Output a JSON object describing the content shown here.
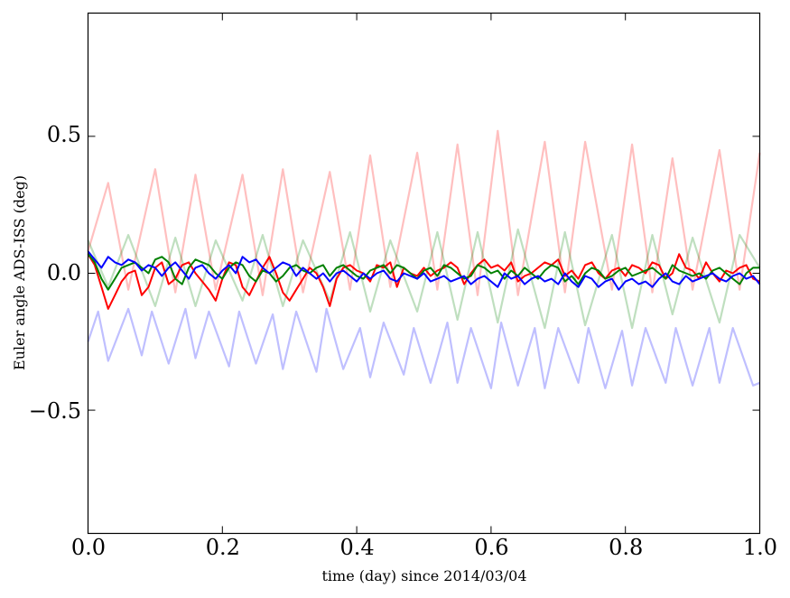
{
  "chart_data": {
    "type": "line",
    "title": "",
    "xlabel": "time (day) since 2014/03/04",
    "ylabel": "Euler angle ADS-ISS (deg)",
    "xlim": [
      0.0,
      1.0
    ],
    "ylim": [
      -0.95,
      0.95
    ],
    "xticks": [
      0.0,
      0.2,
      0.4,
      0.6,
      0.8,
      1.0
    ],
    "xtick_labels": [
      "0.0",
      "0.2",
      "0.4",
      "0.6",
      "0.8",
      "1.0"
    ],
    "yticks": [
      0.5,
      0.0,
      -0.5
    ],
    "ytick_labels": [
      "0.5",
      "0.0",
      "−0.5"
    ],
    "grid": false,
    "series": [
      {
        "color": "#ff0000",
        "opacity": 0.25,
        "style": "periodic-spikes",
        "x": [
          0.0,
          0.03,
          0.06,
          0.1,
          0.13,
          0.16,
          0.19,
          0.23,
          0.26,
          0.29,
          0.32,
          0.36,
          0.39,
          0.42,
          0.45,
          0.49,
          0.52,
          0.55,
          0.58,
          0.61,
          0.64,
          0.68,
          0.71,
          0.74,
          0.78,
          0.81,
          0.84,
          0.87,
          0.9,
          0.94,
          0.97,
          1.0
        ],
        "y": [
          0.08,
          0.33,
          -0.06,
          0.38,
          -0.07,
          0.36,
          -0.06,
          0.36,
          -0.08,
          0.38,
          -0.07,
          0.37,
          -0.06,
          0.43,
          -0.05,
          0.44,
          -0.06,
          0.47,
          -0.08,
          0.52,
          -0.08,
          0.48,
          -0.07,
          0.48,
          -0.06,
          0.47,
          -0.07,
          0.42,
          -0.06,
          0.45,
          -0.06,
          0.44
        ]
      },
      {
        "color": "#008000",
        "opacity": 0.25,
        "style": "periodic-wave",
        "x": [
          0.0,
          0.03,
          0.06,
          0.1,
          0.13,
          0.16,
          0.19,
          0.23,
          0.26,
          0.29,
          0.32,
          0.36,
          0.39,
          0.42,
          0.45,
          0.49,
          0.52,
          0.55,
          0.58,
          0.61,
          0.64,
          0.68,
          0.71,
          0.74,
          0.78,
          0.81,
          0.84,
          0.87,
          0.9,
          0.94,
          0.97,
          1.0
        ],
        "y": [
          0.12,
          -0.05,
          0.14,
          -0.12,
          0.13,
          -0.12,
          0.12,
          -0.1,
          0.14,
          -0.12,
          0.12,
          -0.1,
          0.15,
          -0.14,
          0.12,
          -0.14,
          0.15,
          -0.17,
          0.15,
          -0.18,
          0.16,
          -0.2,
          0.15,
          -0.19,
          0.14,
          -0.2,
          0.14,
          -0.15,
          0.13,
          -0.18,
          0.14,
          0.02
        ]
      },
      {
        "color": "#0000ff",
        "opacity": 0.25,
        "style": "periodic-dips",
        "x": [
          0.0,
          0.015,
          0.03,
          0.06,
          0.08,
          0.095,
          0.12,
          0.145,
          0.16,
          0.18,
          0.21,
          0.225,
          0.25,
          0.275,
          0.29,
          0.31,
          0.34,
          0.355,
          0.38,
          0.405,
          0.42,
          0.44,
          0.47,
          0.485,
          0.51,
          0.535,
          0.55,
          0.57,
          0.6,
          0.615,
          0.64,
          0.665,
          0.68,
          0.7,
          0.73,
          0.745,
          0.77,
          0.795,
          0.81,
          0.83,
          0.86,
          0.875,
          0.9,
          0.925,
          0.94,
          0.96,
          0.99,
          1.0
        ],
        "y": [
          -0.25,
          -0.14,
          -0.32,
          -0.13,
          -0.3,
          -0.14,
          -0.33,
          -0.13,
          -0.31,
          -0.14,
          -0.34,
          -0.14,
          -0.33,
          -0.15,
          -0.35,
          -0.14,
          -0.36,
          -0.13,
          -0.35,
          -0.2,
          -0.38,
          -0.18,
          -0.37,
          -0.2,
          -0.4,
          -0.18,
          -0.4,
          -0.2,
          -0.42,
          -0.18,
          -0.41,
          -0.2,
          -0.42,
          -0.2,
          -0.4,
          -0.2,
          -0.42,
          -0.21,
          -0.41,
          -0.2,
          -0.4,
          -0.2,
          -0.41,
          -0.2,
          -0.4,
          -0.2,
          -0.41,
          -0.4
        ]
      },
      {
        "color": "#ff0000",
        "opacity": 1,
        "style": "noisy",
        "x": [
          0.0,
          0.01,
          0.02,
          0.03,
          0.04,
          0.05,
          0.06,
          0.07,
          0.08,
          0.09,
          0.1,
          0.11,
          0.12,
          0.13,
          0.14,
          0.15,
          0.16,
          0.17,
          0.18,
          0.19,
          0.2,
          0.21,
          0.22,
          0.23,
          0.24,
          0.25,
          0.26,
          0.27,
          0.28,
          0.29,
          0.3,
          0.31,
          0.32,
          0.33,
          0.34,
          0.35,
          0.36,
          0.37,
          0.38,
          0.39,
          0.4,
          0.41,
          0.42,
          0.43,
          0.44,
          0.45,
          0.46,
          0.47,
          0.48,
          0.49,
          0.5,
          0.51,
          0.52,
          0.53,
          0.54,
          0.55,
          0.56,
          0.57,
          0.58,
          0.59,
          0.6,
          0.61,
          0.62,
          0.63,
          0.64,
          0.65,
          0.66,
          0.67,
          0.68,
          0.69,
          0.7,
          0.71,
          0.72,
          0.73,
          0.74,
          0.75,
          0.76,
          0.77,
          0.78,
          0.79,
          0.8,
          0.81,
          0.82,
          0.83,
          0.84,
          0.85,
          0.86,
          0.87,
          0.88,
          0.89,
          0.9,
          0.91,
          0.92,
          0.93,
          0.94,
          0.95,
          0.96,
          0.97,
          0.98,
          0.99,
          1.0
        ],
        "y": [
          0.07,
          0.03,
          -0.05,
          -0.13,
          -0.08,
          -0.03,
          0.0,
          0.01,
          -0.08,
          -0.05,
          0.02,
          0.04,
          -0.04,
          -0.02,
          0.03,
          0.04,
          0.0,
          -0.03,
          -0.06,
          -0.1,
          -0.02,
          0.04,
          0.03,
          -0.05,
          -0.08,
          -0.03,
          0.02,
          0.06,
          0.0,
          -0.07,
          -0.1,
          -0.06,
          -0.02,
          0.02,
          0.0,
          -0.05,
          -0.12,
          -0.02,
          0.02,
          0.03,
          0.01,
          0.0,
          -0.03,
          0.03,
          0.02,
          0.04,
          -0.05,
          0.02,
          0.0,
          -0.01,
          0.02,
          -0.01,
          0.01,
          0.02,
          0.04,
          0.02,
          -0.04,
          0.0,
          0.03,
          0.05,
          0.02,
          0.03,
          0.01,
          0.04,
          -0.03,
          -0.01,
          0.0,
          0.02,
          0.04,
          0.03,
          0.05,
          -0.01,
          0.01,
          -0.02,
          0.03,
          0.04,
          0.0,
          -0.02,
          0.01,
          0.02,
          -0.01,
          0.03,
          0.02,
          0.0,
          0.04,
          0.03,
          -0.02,
          0.0,
          0.07,
          0.02,
          0.01,
          -0.02,
          0.04,
          0.0,
          -0.03,
          0.01,
          0.0,
          0.02,
          0.03,
          -0.02,
          -0.03
        ]
      },
      {
        "color": "#008000",
        "opacity": 1,
        "style": "noisy",
        "x": [
          0.0,
          0.01,
          0.02,
          0.03,
          0.04,
          0.05,
          0.06,
          0.07,
          0.08,
          0.09,
          0.1,
          0.11,
          0.12,
          0.13,
          0.14,
          0.15,
          0.16,
          0.17,
          0.18,
          0.19,
          0.2,
          0.21,
          0.22,
          0.23,
          0.24,
          0.25,
          0.26,
          0.27,
          0.28,
          0.29,
          0.3,
          0.31,
          0.32,
          0.33,
          0.34,
          0.35,
          0.36,
          0.37,
          0.38,
          0.39,
          0.4,
          0.41,
          0.42,
          0.43,
          0.44,
          0.45,
          0.46,
          0.47,
          0.48,
          0.49,
          0.5,
          0.51,
          0.52,
          0.53,
          0.54,
          0.55,
          0.56,
          0.57,
          0.58,
          0.59,
          0.6,
          0.61,
          0.62,
          0.63,
          0.64,
          0.65,
          0.66,
          0.67,
          0.68,
          0.69,
          0.7,
          0.71,
          0.72,
          0.73,
          0.74,
          0.75,
          0.76,
          0.77,
          0.78,
          0.79,
          0.8,
          0.81,
          0.82,
          0.83,
          0.84,
          0.85,
          0.86,
          0.87,
          0.88,
          0.89,
          0.9,
          0.91,
          0.92,
          0.93,
          0.94,
          0.95,
          0.96,
          0.97,
          0.98,
          0.99,
          1.0
        ],
        "y": [
          0.07,
          0.04,
          -0.02,
          -0.06,
          -0.02,
          0.02,
          0.03,
          0.04,
          0.02,
          0.0,
          0.05,
          0.06,
          0.04,
          -0.02,
          -0.04,
          0.02,
          0.05,
          0.04,
          0.03,
          0.0,
          -0.02,
          0.02,
          0.04,
          0.03,
          -0.01,
          -0.03,
          0.01,
          0.0,
          -0.03,
          -0.01,
          0.02,
          0.03,
          0.01,
          0.0,
          0.02,
          0.03,
          -0.01,
          0.02,
          0.03,
          0.01,
          -0.01,
          -0.02,
          0.01,
          0.02,
          0.03,
          0.0,
          0.03,
          0.02,
          0.0,
          -0.02,
          0.01,
          0.02,
          -0.01,
          0.03,
          0.02,
          0.0,
          -0.02,
          -0.01,
          0.03,
          0.02,
          0.0,
          0.01,
          -0.02,
          0.01,
          -0.01,
          0.02,
          0.0,
          -0.02,
          0.01,
          0.03,
          0.02,
          -0.03,
          -0.01,
          -0.04,
          0.0,
          0.02,
          0.01,
          -0.02,
          -0.01,
          0.01,
          0.02,
          -0.01,
          0.0,
          0.01,
          0.02,
          0.0,
          -0.02,
          0.03,
          0.01,
          0.0,
          -0.01,
          0.0,
          -0.02,
          0.01,
          0.02,
          0.0,
          -0.02,
          -0.04,
          0.0,
          0.02,
          0.02
        ]
      },
      {
        "color": "#0000ff",
        "opacity": 1,
        "style": "noisy",
        "x": [
          0.0,
          0.01,
          0.02,
          0.03,
          0.04,
          0.05,
          0.06,
          0.07,
          0.08,
          0.09,
          0.1,
          0.11,
          0.12,
          0.13,
          0.14,
          0.15,
          0.16,
          0.17,
          0.18,
          0.19,
          0.2,
          0.21,
          0.22,
          0.23,
          0.24,
          0.25,
          0.26,
          0.27,
          0.28,
          0.29,
          0.3,
          0.31,
          0.32,
          0.33,
          0.34,
          0.35,
          0.36,
          0.37,
          0.38,
          0.39,
          0.4,
          0.41,
          0.42,
          0.43,
          0.44,
          0.45,
          0.46,
          0.47,
          0.48,
          0.49,
          0.5,
          0.51,
          0.52,
          0.53,
          0.54,
          0.55,
          0.56,
          0.57,
          0.58,
          0.59,
          0.6,
          0.61,
          0.62,
          0.63,
          0.64,
          0.65,
          0.66,
          0.67,
          0.68,
          0.69,
          0.7,
          0.71,
          0.72,
          0.73,
          0.74,
          0.75,
          0.76,
          0.77,
          0.78,
          0.79,
          0.8,
          0.81,
          0.82,
          0.83,
          0.84,
          0.85,
          0.86,
          0.87,
          0.88,
          0.89,
          0.9,
          0.91,
          0.92,
          0.93,
          0.94,
          0.95,
          0.96,
          0.97,
          0.98,
          0.99,
          1.0
        ],
        "y": [
          0.08,
          0.05,
          0.02,
          0.06,
          0.04,
          0.03,
          0.05,
          0.04,
          0.01,
          0.03,
          0.02,
          -0.01,
          0.02,
          0.04,
          0.01,
          -0.02,
          0.02,
          0.03,
          0.0,
          -0.02,
          0.01,
          0.03,
          0.0,
          0.06,
          0.04,
          0.05,
          0.02,
          0.0,
          0.02,
          0.04,
          0.03,
          -0.01,
          0.02,
          0.0,
          -0.02,
          0.0,
          -0.03,
          0.0,
          0.01,
          -0.01,
          -0.03,
          0.0,
          -0.02,
          0.0,
          0.01,
          -0.02,
          -0.03,
          0.0,
          -0.01,
          -0.02,
          0.0,
          -0.03,
          -0.02,
          -0.01,
          -0.03,
          -0.02,
          -0.01,
          -0.04,
          -0.02,
          -0.01,
          -0.03,
          -0.05,
          0.0,
          -0.02,
          -0.01,
          -0.04,
          -0.02,
          -0.01,
          -0.03,
          -0.02,
          -0.04,
          0.0,
          -0.03,
          -0.05,
          -0.01,
          -0.02,
          -0.05,
          -0.03,
          -0.02,
          -0.06,
          -0.03,
          -0.02,
          -0.04,
          -0.03,
          -0.05,
          -0.02,
          0.0,
          -0.03,
          -0.04,
          -0.01,
          -0.03,
          -0.02,
          -0.01,
          0.0,
          -0.02,
          -0.03,
          -0.01,
          0.0,
          -0.02,
          -0.01,
          -0.04
        ]
      }
    ]
  }
}
